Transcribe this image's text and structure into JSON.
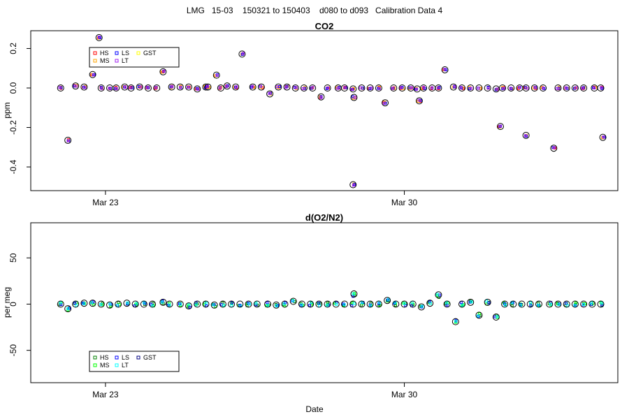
{
  "figure": {
    "main_title": "LMG   15-03    150321 to 150403    d080 to d093   Calibration Data 4",
    "x_axis_label": "Date"
  },
  "chart_data": [
    {
      "type": "scatter",
      "title": "CO2",
      "xlabel": "",
      "ylabel": "ppm",
      "xlim": [
        21.25,
        35.0
      ],
      "ylim": [
        -0.52,
        0.29
      ],
      "x_ticks": [
        {
          "value": 23,
          "label": "Mar 23"
        },
        {
          "value": 30,
          "label": "Mar 30"
        }
      ],
      "y_ticks": [
        {
          "value": -0.4,
          "label": "-0.4"
        },
        {
          "value": -0.2,
          "label": "-0.2"
        },
        {
          "value": 0.0,
          "label": "0.0"
        },
        {
          "value": 0.2,
          "label": "0.2"
        }
      ],
      "legend_position": "top-left",
      "series": [
        {
          "name": "HS",
          "color": "#ff0000"
        },
        {
          "name": "MS",
          "color": "#ffa500"
        },
        {
          "name": "LS",
          "color": "#0000ff"
        },
        {
          "name": "LT",
          "color": "#a020f0"
        },
        {
          "name": "GST",
          "color": "#ffff00"
        }
      ],
      "gst_points": [
        [
          21.95,
          0.0
        ],
        [
          22.12,
          -0.265
        ],
        [
          22.3,
          0.01
        ],
        [
          22.5,
          0.005
        ],
        [
          22.7,
          0.068
        ],
        [
          22.9,
          0.0
        ],
        [
          23.1,
          0.0
        ],
        [
          23.25,
          0.0
        ],
        [
          22.85,
          0.255
        ],
        [
          23.45,
          0.005
        ],
        [
          23.6,
          0.0
        ],
        [
          23.8,
          0.005
        ],
        [
          24.0,
          0.0
        ],
        [
          24.2,
          0.0
        ],
        [
          24.35,
          0.082
        ],
        [
          24.55,
          0.005
        ],
        [
          24.75,
          0.005
        ],
        [
          24.95,
          0.005
        ],
        [
          25.15,
          -0.005
        ],
        [
          25.35,
          0.005
        ],
        [
          25.6,
          0.065
        ],
        [
          25.4,
          0.005
        ],
        [
          25.7,
          0.0
        ],
        [
          25.85,
          0.01
        ],
        [
          26.05,
          0.005
        ],
        [
          26.2,
          0.172
        ],
        [
          26.45,
          0.005
        ],
        [
          26.65,
          0.005
        ],
        [
          26.85,
          -0.03
        ],
        [
          27.05,
          0.005
        ],
        [
          27.25,
          0.005
        ],
        [
          27.45,
          0.0
        ],
        [
          27.65,
          0.0
        ],
        [
          27.85,
          0.0
        ],
        [
          28.05,
          -0.045
        ],
        [
          28.2,
          0.0
        ],
        [
          28.45,
          0.0
        ],
        [
          28.6,
          0.0
        ],
        [
          28.8,
          -0.005
        ],
        [
          28.82,
          -0.048
        ],
        [
          28.8,
          -0.49
        ],
        [
          29.0,
          0.0
        ],
        [
          29.2,
          0.0
        ],
        [
          29.4,
          0.0
        ],
        [
          29.55,
          -0.075
        ],
        [
          29.75,
          0.0
        ],
        [
          29.95,
          0.0
        ],
        [
          30.15,
          0.0
        ],
        [
          30.3,
          -0.005
        ],
        [
          30.45,
          0.0
        ],
        [
          30.35,
          -0.065
        ],
        [
          30.65,
          0.0
        ],
        [
          30.8,
          0.0
        ],
        [
          30.95,
          0.092
        ],
        [
          31.15,
          0.005
        ],
        [
          31.35,
          0.0
        ],
        [
          31.55,
          0.0
        ],
        [
          31.75,
          0.0
        ],
        [
          31.95,
          0.0
        ],
        [
          32.15,
          -0.005
        ],
        [
          32.3,
          0.0
        ],
        [
          32.25,
          -0.195
        ],
        [
          32.5,
          0.0
        ],
        [
          32.7,
          0.0
        ],
        [
          32.85,
          0.0
        ],
        [
          32.85,
          -0.24
        ],
        [
          33.05,
          0.0
        ],
        [
          33.25,
          0.0
        ],
        [
          33.5,
          -0.305
        ],
        [
          33.6,
          0.0
        ],
        [
          33.8,
          0.0
        ],
        [
          34.0,
          0.0
        ],
        [
          34.2,
          0.0
        ],
        [
          34.45,
          0.0
        ],
        [
          34.6,
          0.0
        ],
        [
          34.65,
          -0.25
        ]
      ]
    },
    {
      "type": "scatter",
      "title": "d(O2/N2)",
      "xlabel": "Date",
      "ylabel": "per meg",
      "xlim": [
        21.25,
        35.0
      ],
      "ylim": [
        -85,
        88
      ],
      "x_ticks": [
        {
          "value": 23,
          "label": "Mar 23"
        },
        {
          "value": 30,
          "label": "Mar 30"
        }
      ],
      "y_ticks": [
        {
          "value": -50,
          "label": "-50"
        },
        {
          "value": 0,
          "label": "0"
        },
        {
          "value": 50,
          "label": "50"
        }
      ],
      "legend_position": "bottom-left",
      "series": [
        {
          "name": "HS",
          "color": "#008000"
        },
        {
          "name": "MS",
          "color": "#00ff00"
        },
        {
          "name": "LS",
          "color": "#0000ff"
        },
        {
          "name": "LT",
          "color": "#00ffff"
        },
        {
          "name": "GST",
          "color": "#000080"
        }
      ],
      "gst_points": [
        [
          21.95,
          0
        ],
        [
          22.12,
          -5
        ],
        [
          22.3,
          0
        ],
        [
          22.5,
          1
        ],
        [
          22.7,
          1
        ],
        [
          22.9,
          0
        ],
        [
          23.1,
          -1
        ],
        [
          23.3,
          0
        ],
        [
          23.5,
          1
        ],
        [
          23.7,
          0
        ],
        [
          23.9,
          0
        ],
        [
          24.1,
          0
        ],
        [
          24.35,
          2
        ],
        [
          24.5,
          0
        ],
        [
          24.75,
          0
        ],
        [
          24.95,
          -2
        ],
        [
          25.15,
          0
        ],
        [
          25.35,
          0
        ],
        [
          25.55,
          -1
        ],
        [
          25.75,
          0
        ],
        [
          25.95,
          0
        ],
        [
          26.15,
          0
        ],
        [
          26.35,
          0
        ],
        [
          26.55,
          0
        ],
        [
          26.8,
          0
        ],
        [
          27.0,
          -1
        ],
        [
          27.2,
          0
        ],
        [
          27.4,
          3
        ],
        [
          27.6,
          0
        ],
        [
          27.8,
          0
        ],
        [
          28.0,
          0
        ],
        [
          28.2,
          0
        ],
        [
          28.4,
          0
        ],
        [
          28.6,
          0
        ],
        [
          28.82,
          11
        ],
        [
          28.8,
          0
        ],
        [
          29.0,
          0
        ],
        [
          29.2,
          0
        ],
        [
          29.4,
          0
        ],
        [
          29.6,
          4
        ],
        [
          29.8,
          0
        ],
        [
          30.0,
          0
        ],
        [
          30.2,
          0
        ],
        [
          30.4,
          -3
        ],
        [
          30.6,
          1
        ],
        [
          30.8,
          10
        ],
        [
          31.0,
          0
        ],
        [
          31.2,
          -19
        ],
        [
          31.35,
          0
        ],
        [
          31.55,
          2
        ],
        [
          31.75,
          -12
        ],
        [
          31.95,
          2
        ],
        [
          32.15,
          -14
        ],
        [
          32.35,
          0
        ],
        [
          32.55,
          0
        ],
        [
          32.75,
          0
        ],
        [
          32.95,
          0
        ],
        [
          33.15,
          0
        ],
        [
          33.4,
          0
        ],
        [
          33.6,
          0
        ],
        [
          33.8,
          0
        ],
        [
          34.0,
          0
        ],
        [
          34.2,
          0
        ],
        [
          34.4,
          0
        ],
        [
          34.6,
          0
        ]
      ]
    }
  ]
}
